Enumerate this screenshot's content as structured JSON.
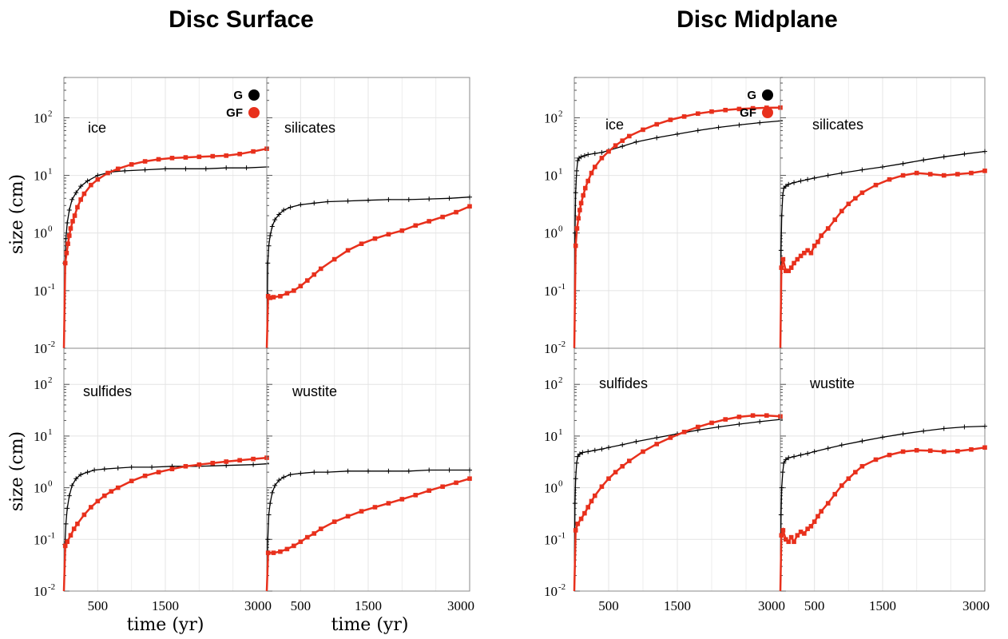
{
  "figure": {
    "left_title": "Disc Surface",
    "right_title": "Disc Midplane",
    "ylabel": "size (cm)",
    "xlabel": "time (yr)"
  },
  "chart_data": [
    {
      "type": "line",
      "group": "Disc Surface",
      "panel": "ice",
      "xlim": [
        0,
        3000
      ],
      "ylim": [
        0.01,
        500
      ],
      "yscale": "log",
      "xticks": [
        500,
        1500,
        3000
      ],
      "legend": [
        "G",
        "GF"
      ],
      "legend_position": "top-right",
      "series": [
        {
          "name": "G",
          "color": "#000000",
          "x": [
            0,
            15,
            30,
            50,
            80,
            120,
            180,
            250,
            350,
            500,
            700,
            900,
            1200,
            1500,
            1800,
            2100,
            2400,
            2700,
            3000
          ],
          "y": [
            0.01,
            0.3,
            0.8,
            1.5,
            2.5,
            3.8,
            5.0,
            6.5,
            8.0,
            10,
            11.5,
            12,
            12.5,
            13,
            13,
            13,
            13.5,
            13.5,
            14
          ]
        },
        {
          "name": "GF",
          "color": "#e8301c",
          "x": [
            0,
            20,
            40,
            60,
            80,
            100,
            130,
            160,
            200,
            250,
            300,
            400,
            500,
            650,
            800,
            1000,
            1200,
            1400,
            1600,
            1800,
            2000,
            2200,
            2400,
            2600,
            2800,
            3000
          ],
          "y": [
            0.01,
            0.3,
            0.45,
            0.65,
            0.9,
            1.2,
            1.6,
            2.0,
            2.8,
            3.8,
            4.8,
            6.8,
            8.5,
            11,
            13,
            15.5,
            17.5,
            19,
            20,
            20.5,
            21,
            21.5,
            22,
            23.5,
            26,
            29
          ]
        }
      ]
    },
    {
      "type": "line",
      "group": "Disc Surface",
      "panel": "silicates",
      "xlim": [
        0,
        3000
      ],
      "ylim": [
        0.01,
        500
      ],
      "yscale": "log",
      "xticks": [
        500,
        1500,
        3000
      ],
      "series": [
        {
          "name": "G",
          "color": "#000000",
          "x": [
            0,
            15,
            30,
            50,
            80,
            120,
            180,
            250,
            350,
            500,
            700,
            900,
            1200,
            1500,
            1800,
            2100,
            2400,
            2700,
            3000
          ],
          "y": [
            0.01,
            0.3,
            0.6,
            0.9,
            1.3,
            1.7,
            2.1,
            2.5,
            2.8,
            3.1,
            3.3,
            3.5,
            3.6,
            3.7,
            3.8,
            3.8,
            3.9,
            4.0,
            4.2
          ]
        },
        {
          "name": "GF",
          "color": "#e8301c",
          "x": [
            0,
            20,
            50,
            100,
            200,
            300,
            400,
            500,
            600,
            700,
            800,
            1000,
            1200,
            1400,
            1600,
            1800,
            2000,
            2200,
            2400,
            2600,
            2800,
            3000
          ],
          "y": [
            0.01,
            0.08,
            0.075,
            0.077,
            0.08,
            0.09,
            0.1,
            0.12,
            0.15,
            0.19,
            0.24,
            0.35,
            0.5,
            0.65,
            0.8,
            0.95,
            1.1,
            1.35,
            1.6,
            1.9,
            2.3,
            2.9
          ]
        }
      ]
    },
    {
      "type": "line",
      "group": "Disc Surface",
      "panel": "sulfides",
      "xlim": [
        0,
        3000
      ],
      "ylim": [
        0.01,
        500
      ],
      "yscale": "log",
      "xticks": [
        500,
        1500,
        3000
      ],
      "series": [
        {
          "name": "G",
          "color": "#000000",
          "x": [
            0,
            15,
            30,
            50,
            80,
            120,
            180,
            250,
            350,
            450,
            600,
            800,
            1000,
            1300,
            1600,
            2000,
            2400,
            2800,
            3000
          ],
          "y": [
            0.01,
            0.08,
            0.2,
            0.4,
            0.7,
            1.1,
            1.5,
            1.8,
            2.0,
            2.2,
            2.3,
            2.4,
            2.5,
            2.5,
            2.6,
            2.6,
            2.7,
            2.8,
            2.9
          ]
        },
        {
          "name": "GF",
          "color": "#e8301c",
          "x": [
            0,
            20,
            50,
            100,
            150,
            200,
            300,
            400,
            500,
            600,
            700,
            800,
            1000,
            1200,
            1400,
            1600,
            1800,
            2000,
            2200,
            2400,
            2600,
            2800,
            3000
          ],
          "y": [
            0.01,
            0.075,
            0.09,
            0.12,
            0.16,
            0.2,
            0.3,
            0.42,
            0.55,
            0.7,
            0.85,
            1.0,
            1.35,
            1.7,
            2.0,
            2.3,
            2.6,
            2.8,
            3.0,
            3.2,
            3.4,
            3.6,
            3.8
          ]
        }
      ]
    },
    {
      "type": "line",
      "group": "Disc Surface",
      "panel": "wustite",
      "xlim": [
        0,
        3000
      ],
      "ylim": [
        0.01,
        500
      ],
      "yscale": "log",
      "xticks": [
        500,
        1500,
        3000
      ],
      "series": [
        {
          "name": "G",
          "color": "#000000",
          "x": [
            0,
            15,
            30,
            50,
            80,
            120,
            180,
            250,
            350,
            500,
            700,
            900,
            1200,
            1500,
            1800,
            2100,
            2400,
            2700,
            3000
          ],
          "y": [
            0.01,
            0.1,
            0.3,
            0.5,
            0.8,
            1.1,
            1.4,
            1.6,
            1.8,
            1.9,
            2.0,
            2.0,
            2.1,
            2.1,
            2.1,
            2.1,
            2.2,
            2.2,
            2.2
          ]
        },
        {
          "name": "GF",
          "color": "#e8301c",
          "x": [
            0,
            20,
            100,
            200,
            300,
            400,
            500,
            600,
            700,
            800,
            1000,
            1200,
            1400,
            1600,
            1800,
            2000,
            2200,
            2400,
            2600,
            2800,
            3000
          ],
          "y": [
            0.01,
            0.055,
            0.055,
            0.058,
            0.065,
            0.075,
            0.09,
            0.11,
            0.13,
            0.16,
            0.22,
            0.28,
            0.35,
            0.42,
            0.5,
            0.6,
            0.72,
            0.88,
            1.05,
            1.25,
            1.5
          ]
        }
      ]
    },
    {
      "type": "line",
      "group": "Disc Midplane",
      "panel": "ice",
      "xlim": [
        0,
        3000
      ],
      "ylim": [
        0.01,
        500
      ],
      "yscale": "log",
      "xticks": [
        500,
        1500,
        3000
      ],
      "legend": [
        "G",
        "GF"
      ],
      "legend_position": "top-right",
      "series": [
        {
          "name": "G",
          "color": "#000000",
          "x": [
            0,
            10,
            20,
            35,
            50,
            70,
            100,
            150,
            200,
            300,
            400,
            500,
            700,
            900,
            1200,
            1500,
            1800,
            2100,
            2400,
            2700,
            3000
          ],
          "y": [
            0.01,
            1.0,
            5.0,
            12,
            18,
            20,
            21,
            22,
            23,
            24,
            25,
            27,
            32,
            38,
            45,
            52,
            60,
            68,
            75,
            82,
            88
          ]
        },
        {
          "name": "GF",
          "color": "#e8301c",
          "x": [
            0,
            20,
            40,
            60,
            80,
            100,
            130,
            160,
            200,
            250,
            300,
            400,
            500,
            600,
            700,
            800,
            1000,
            1200,
            1400,
            1600,
            1800,
            2000,
            2200,
            2400,
            2600,
            2800,
            3000
          ],
          "y": [
            0.01,
            0.6,
            1.2,
            1.8,
            2.5,
            3.3,
            4.5,
            6.0,
            8.0,
            11,
            14,
            20,
            26,
            33,
            40,
            48,
            62,
            77,
            92,
            105,
            118,
            128,
            136,
            142,
            146,
            149,
            150
          ]
        }
      ]
    },
    {
      "type": "line",
      "group": "Disc Midplane",
      "panel": "silicates",
      "xlim": [
        0,
        3000
      ],
      "ylim": [
        0.01,
        500
      ],
      "yscale": "log",
      "xticks": [
        500,
        1500,
        3000
      ],
      "series": [
        {
          "name": "G",
          "color": "#000000",
          "x": [
            0,
            10,
            20,
            35,
            50,
            80,
            120,
            200,
            300,
            400,
            500,
            700,
            900,
            1200,
            1500,
            1800,
            2100,
            2400,
            2700,
            3000
          ],
          "y": [
            0.01,
            0.5,
            2.0,
            4.5,
            6.0,
            6.5,
            7.0,
            7.5,
            8.0,
            8.5,
            9.0,
            10,
            11,
            12.5,
            14,
            16,
            18.5,
            21,
            23.5,
            26
          ]
        },
        {
          "name": "GF",
          "color": "#e8301c",
          "x": [
            0,
            15,
            40,
            80,
            120,
            160,
            200,
            250,
            300,
            350,
            400,
            450,
            500,
            550,
            600,
            700,
            800,
            900,
            1000,
            1100,
            1200,
            1400,
            1600,
            1800,
            2000,
            2200,
            2400,
            2600,
            2800,
            3000
          ],
          "y": [
            0.01,
            0.25,
            0.35,
            0.22,
            0.22,
            0.25,
            0.3,
            0.35,
            0.4,
            0.45,
            0.5,
            0.45,
            0.6,
            0.7,
            0.9,
            1.2,
            1.7,
            2.4,
            3.2,
            4.0,
            5.0,
            6.8,
            8.5,
            10,
            11,
            10.5,
            10,
            10.5,
            11,
            12
          ]
        }
      ]
    },
    {
      "type": "line",
      "group": "Disc Midplane",
      "panel": "sulfides",
      "xlim": [
        0,
        3000
      ],
      "ylim": [
        0.01,
        500
      ],
      "yscale": "log",
      "xticks": [
        500,
        1500,
        3000
      ],
      "series": [
        {
          "name": "G",
          "color": "#000000",
          "x": [
            0,
            10,
            20,
            35,
            50,
            80,
            120,
            200,
            300,
            400,
            500,
            700,
            900,
            1200,
            1500,
            1800,
            2100,
            2400,
            2700,
            3000
          ],
          "y": [
            0.01,
            0.5,
            1.5,
            3.0,
            4.0,
            4.5,
            4.8,
            5.0,
            5.3,
            5.6,
            6.0,
            6.8,
            7.8,
            9.3,
            11,
            13,
            15,
            17,
            19,
            21
          ]
        },
        {
          "name": "GF",
          "color": "#e8301c",
          "x": [
            0,
            20,
            50,
            100,
            150,
            200,
            250,
            300,
            400,
            500,
            600,
            700,
            800,
            1000,
            1200,
            1400,
            1600,
            1800,
            2000,
            2200,
            2400,
            2600,
            2800,
            3000
          ],
          "y": [
            0.01,
            0.15,
            0.2,
            0.25,
            0.32,
            0.42,
            0.55,
            0.7,
            1.05,
            1.5,
            2.0,
            2.6,
            3.3,
            5.0,
            7.0,
            9.3,
            12,
            15,
            18,
            21,
            23.5,
            25,
            25,
            24
          ]
        }
      ]
    },
    {
      "type": "line",
      "group": "Disc Midplane",
      "panel": "wustite",
      "xlim": [
        0,
        3000
      ],
      "ylim": [
        0.01,
        500
      ],
      "yscale": "log",
      "xticks": [
        500,
        1500,
        3000
      ],
      "series": [
        {
          "name": "G",
          "color": "#000000",
          "x": [
            0,
            10,
            20,
            35,
            50,
            80,
            120,
            200,
            300,
            400,
            500,
            700,
            900,
            1200,
            1500,
            1800,
            2100,
            2400,
            2700,
            3000
          ],
          "y": [
            0.01,
            0.3,
            1.0,
            2.0,
            3.0,
            3.5,
            3.8,
            4.0,
            4.3,
            4.6,
            5.0,
            5.8,
            6.7,
            8.0,
            9.5,
            11,
            12.5,
            14,
            15,
            15.5
          ]
        },
        {
          "name": "GF",
          "color": "#e8301c",
          "x": [
            0,
            15,
            40,
            80,
            120,
            160,
            200,
            250,
            300,
            350,
            400,
            450,
            500,
            550,
            600,
            700,
            800,
            900,
            1000,
            1100,
            1200,
            1400,
            1600,
            1800,
            2000,
            2200,
            2400,
            2600,
            2800,
            3000
          ],
          "y": [
            0.01,
            0.12,
            0.15,
            0.1,
            0.09,
            0.11,
            0.09,
            0.12,
            0.14,
            0.13,
            0.16,
            0.18,
            0.22,
            0.28,
            0.35,
            0.5,
            0.75,
            1.1,
            1.5,
            2.0,
            2.6,
            3.5,
            4.3,
            5.0,
            5.3,
            5.2,
            5.0,
            5.1,
            5.5,
            6.0
          ]
        }
      ]
    }
  ]
}
